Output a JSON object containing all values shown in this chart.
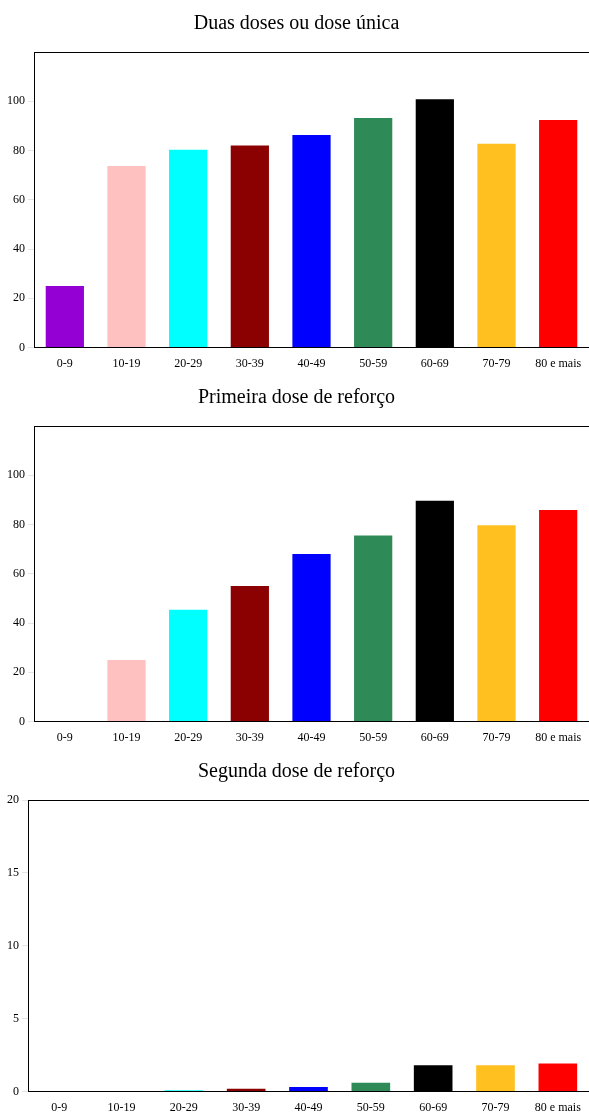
{
  "chart_data": [
    {
      "type": "bar",
      "title": "Duas doses ou dose única",
      "categories": [
        "0-9",
        "10-19",
        "20-29",
        "30-39",
        "40-49",
        "50-59",
        "60-69",
        "70-79",
        "80 e mais"
      ],
      "values": [
        25,
        73.7,
        80.3,
        82,
        86.3,
        93.2,
        100.8,
        82.8,
        92.4
      ],
      "colors": [
        "#9400d3",
        "#ffc0c0",
        "#00ffff",
        "#8b0000",
        "#0000ff",
        "#2e8b57",
        "#000000",
        "#ffc020",
        "#ff0000"
      ],
      "ylim": [
        0,
        120
      ],
      "yticks": [
        0,
        20,
        40,
        60,
        80,
        100
      ]
    },
    {
      "type": "bar",
      "title": "Primeira dose de reforço",
      "categories": [
        "0-9",
        "10-19",
        "20-29",
        "30-39",
        "40-49",
        "50-59",
        "60-69",
        "70-79",
        "80 e mais"
      ],
      "values": [
        0,
        25,
        45.4,
        55,
        68,
        75.5,
        89.7,
        79.7,
        85.9
      ],
      "colors": [
        "#9400d3",
        "#ffc0c0",
        "#00ffff",
        "#8b0000",
        "#0000ff",
        "#2e8b57",
        "#000000",
        "#ffc020",
        "#ff0000"
      ],
      "ylim": [
        0,
        120
      ],
      "yticks": [
        0,
        20,
        40,
        60,
        80,
        100
      ]
    },
    {
      "type": "bar",
      "title": "Segunda dose de reforço",
      "categories": [
        "0-9",
        "10-19",
        "20-29",
        "30-39",
        "40-49",
        "50-59",
        "60-69",
        "70-79",
        "80 e mais"
      ],
      "values": [
        0,
        0,
        0.1,
        0.2,
        0.32,
        0.6,
        1.8,
        1.8,
        1.92
      ],
      "colors": [
        "#9400d3",
        "#ffc0c0",
        "#00ffff",
        "#8b0000",
        "#0000ff",
        "#2e8b57",
        "#000000",
        "#ffc020",
        "#ff0000"
      ],
      "ylim": [
        0,
        20
      ],
      "yticks": [
        0,
        5,
        10,
        15,
        20
      ]
    }
  ]
}
